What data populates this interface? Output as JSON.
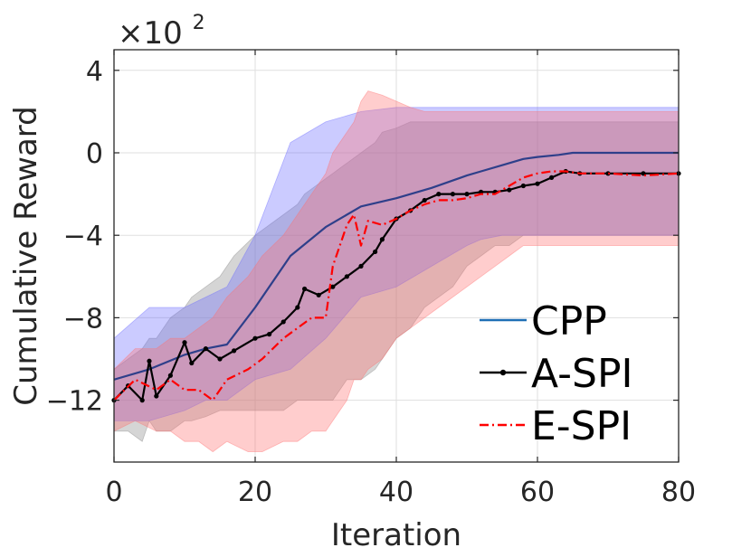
{
  "chart_data": {
    "type": "line",
    "xlabel": "Iteration",
    "ylabel": "Cumulative Reward",
    "xlim": [
      0,
      80
    ],
    "ylim": [
      -15,
      5
    ],
    "xticks": [
      0,
      20,
      40,
      60,
      80
    ],
    "yticks": [
      -12,
      -8,
      -4,
      0,
      4
    ],
    "xtick_labels": [
      "0",
      "20",
      "40",
      "60",
      "80"
    ],
    "ytick_labels": [
      "−12",
      "−8",
      "−4",
      "0",
      "4"
    ],
    "y_multiplier_base": "×10",
    "y_multiplier_exp": "2",
    "grid": true,
    "legend_position": "bottom-right",
    "series": [
      {
        "name": "CPP",
        "color": "#2e3f8a",
        "legend_color": "#1f6fb5",
        "band_color": "#6b6bff",
        "marker": "none",
        "dash": "solid",
        "x": [
          0,
          5,
          10,
          13,
          16,
          20,
          25,
          30,
          35,
          40,
          45,
          50,
          52,
          55,
          58,
          60,
          63,
          65,
          70,
          75,
          80
        ],
        "y": [
          -11.0,
          -10.5,
          -9.8,
          -9.5,
          -9.3,
          -7.5,
          -5.0,
          -3.6,
          -2.6,
          -2.2,
          -1.7,
          -1.1,
          -0.9,
          -0.6,
          -0.3,
          -0.2,
          -0.1,
          0.0,
          0.0,
          0.0,
          0.0
        ],
        "upper": [
          -9.0,
          -7.5,
          -7.5,
          -7.0,
          -6.5,
          -4.0,
          0.5,
          1.5,
          2.0,
          2.2,
          2.2,
          2.2,
          2.2,
          2.2,
          2.2,
          2.2,
          2.2,
          2.2,
          2.2,
          2.2,
          2.2
        ],
        "lower": [
          -13.0,
          -13.0,
          -12.5,
          -12.0,
          -12.0,
          -11.0,
          -10.5,
          -9.0,
          -7.0,
          -6.5,
          -5.5,
          -4.5,
          -4.2,
          -4.0,
          -4.0,
          -4.0,
          -4.0,
          -4.0,
          -4.0,
          -4.0,
          -4.0
        ]
      },
      {
        "name": "A-SPI",
        "color": "#000000",
        "band_color": "#888888",
        "marker": "dot",
        "dash": "solid",
        "x": [
          0,
          2,
          4,
          5,
          6,
          8,
          10,
          11,
          13,
          15,
          17,
          20,
          22,
          24,
          26,
          27,
          29,
          31,
          33,
          35,
          37,
          38,
          40,
          42,
          44,
          46,
          48,
          50,
          52,
          54,
          56,
          58,
          60,
          62,
          64,
          66,
          70,
          75,
          80
        ],
        "y": [
          -12.0,
          -11.3,
          -12.0,
          -10.1,
          -11.8,
          -10.8,
          -9.2,
          -10.2,
          -9.5,
          -10.0,
          -9.6,
          -9.0,
          -8.8,
          -8.2,
          -7.5,
          -6.6,
          -6.9,
          -6.5,
          -6.0,
          -5.5,
          -4.8,
          -4.2,
          -3.2,
          -2.8,
          -2.3,
          -2.0,
          -2.0,
          -2.0,
          -1.9,
          -1.9,
          -1.8,
          -1.6,
          -1.5,
          -1.2,
          -0.9,
          -1.0,
          -1.0,
          -1.0,
          -1.0
        ],
        "upper": [
          -10.5,
          -10.0,
          -9.5,
          -9.0,
          -9.0,
          -8.0,
          -7.5,
          -7.0,
          -6.5,
          -6.0,
          -5.0,
          -4.0,
          -3.5,
          -3.0,
          -2.5,
          -2.0,
          -1.5,
          -1.0,
          -0.5,
          0.0,
          0.5,
          1.0,
          1.2,
          1.5,
          1.5,
          1.5,
          1.5,
          1.5,
          1.5,
          1.5,
          1.5,
          1.5,
          1.5,
          1.5,
          1.5,
          1.5,
          1.5,
          1.5,
          1.5
        ],
        "lower": [
          -13.5,
          -13.5,
          -14.0,
          -13.0,
          -13.5,
          -13.5,
          -13.0,
          -13.0,
          -12.8,
          -12.5,
          -12.5,
          -12.5,
          -12.5,
          -12.5,
          -12.0,
          -12.0,
          -12.0,
          -12.0,
          -11.0,
          -11.0,
          -10.5,
          -10.0,
          -9.0,
          -8.5,
          -7.5,
          -7.0,
          -6.5,
          -5.5,
          -5.0,
          -4.5,
          -4.5,
          -4.0,
          -4.0,
          -4.0,
          -4.0,
          -4.0,
          -4.0,
          -4.0,
          -4.0
        ]
      },
      {
        "name": "E-SPI",
        "color": "#ff0000",
        "band_color": "#ff7070",
        "marker": "none",
        "dash": "dashdot",
        "x": [
          0,
          3,
          6,
          8,
          10,
          12,
          14,
          16,
          19,
          21,
          24,
          26,
          28,
          30,
          31,
          33,
          34,
          35,
          36,
          38,
          40,
          42,
          44,
          46,
          48,
          50,
          52,
          54,
          56,
          58,
          60,
          62,
          64,
          66,
          70,
          75,
          80
        ],
        "y": [
          -12.0,
          -11.0,
          -11.5,
          -11.0,
          -11.5,
          -11.5,
          -12.0,
          -11.0,
          -10.5,
          -10.0,
          -9.0,
          -8.5,
          -8.0,
          -8.0,
          -5.5,
          -3.5,
          -3.0,
          -4.5,
          -3.3,
          -3.5,
          -3.2,
          -2.8,
          -2.5,
          -2.3,
          -2.3,
          -2.2,
          -2.0,
          -2.0,
          -1.6,
          -1.2,
          -1.0,
          -0.9,
          -0.9,
          -1.0,
          -1.0,
          -1.1,
          -1.0
        ],
        "upper": [
          -10.5,
          -9.5,
          -9.5,
          -9.0,
          -9.0,
          -8.5,
          -8.0,
          -7.0,
          -6.0,
          -5.0,
          -4.0,
          -3.0,
          -2.0,
          -1.0,
          0.0,
          1.0,
          1.5,
          2.5,
          3.0,
          2.8,
          2.5,
          2.2,
          2.0,
          2.0,
          2.0,
          2.0,
          2.0,
          2.0,
          2.0,
          2.0,
          2.0,
          2.0,
          2.0,
          2.0,
          2.0,
          2.0,
          2.0
        ],
        "lower": [
          -13.5,
          -13.0,
          -13.5,
          -13.5,
          -14.0,
          -14.0,
          -14.5,
          -14.0,
          -14.5,
          -14.5,
          -14.0,
          -14.0,
          -13.5,
          -13.5,
          -13.0,
          -12.0,
          -11.0,
          -11.0,
          -10.5,
          -10.0,
          -9.0,
          -8.5,
          -8.0,
          -7.5,
          -7.0,
          -6.5,
          -6.0,
          -5.5,
          -5.0,
          -4.5,
          -4.5,
          -4.5,
          -4.5,
          -4.5,
          -4.5,
          -4.5,
          -4.5
        ]
      }
    ]
  }
}
